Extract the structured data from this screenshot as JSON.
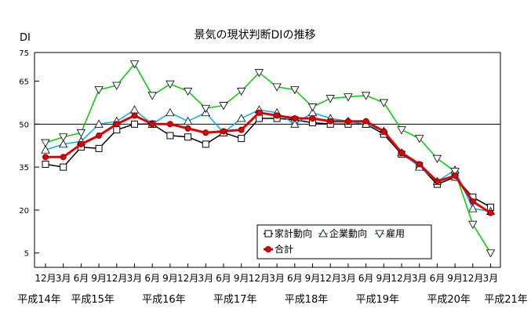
{
  "chart_data": {
    "type": "line",
    "title": "景気の現状判断DIの推移",
    "ylabel": "DI",
    "ylim": [
      0,
      75
    ],
    "yticks": [
      5,
      20,
      35,
      50,
      65,
      75
    ],
    "reference_line": 50,
    "grid": false,
    "legend_position": "bottom-right",
    "x_month_labels": [
      "12月",
      "3月",
      "6月",
      "9月",
      "12月",
      "3月",
      "6月",
      "9月",
      "12月",
      "3月",
      "6月",
      "9月",
      "12月",
      "3月",
      "6月",
      "9月",
      "12月",
      "3月",
      "6月",
      "9月",
      "12月",
      "3月",
      "6月",
      "9月",
      "12月",
      "3月"
    ],
    "year_labels": [
      {
        "label": "平成14年",
        "index": 0
      },
      {
        "label": "平成15年",
        "index": 3
      },
      {
        "label": "平成16年",
        "index": 7
      },
      {
        "label": "平成17年",
        "index": 11
      },
      {
        "label": "平成18年",
        "index": 15
      },
      {
        "label": "平成19年",
        "index": 19
      },
      {
        "label": "平成20年",
        "index": 23
      },
      {
        "label": "平成21年",
        "index": 27
      }
    ],
    "series": [
      {
        "name": "家計動向",
        "color": "#000000",
        "marker": "square",
        "values": [
          36,
          35,
          42,
          41.5,
          48,
          50,
          50,
          46,
          45.5,
          43,
          47,
          45,
          52,
          52,
          51.5,
          50.5,
          50,
          50,
          50,
          46.5,
          39.5,
          35.5,
          29,
          31.5,
          24.5,
          21
        ]
      },
      {
        "name": "企業動向",
        "color": "#00b0f0",
        "marker": "triangle-up",
        "values": [
          41,
          43,
          44,
          50,
          51,
          55,
          50,
          54,
          51,
          54,
          47,
          52,
          55,
          54,
          50,
          54,
          52,
          51,
          50,
          47.5,
          40,
          35,
          30,
          34,
          20.5,
          19.5
        ]
      },
      {
        "name": "雇用",
        "color": "#00cc00",
        "marker": "triangle-down",
        "values": [
          43.5,
          45.5,
          47,
          62,
          63.5,
          71,
          60,
          64,
          61.5,
          55.5,
          56.5,
          61.5,
          68,
          63,
          62,
          56,
          59,
          59.5,
          60,
          57.5,
          48,
          45,
          38,
          33.5,
          15,
          5
        ]
      },
      {
        "name": "合計",
        "color": "#e00000",
        "marker": "circle",
        "values": [
          38.5,
          38.5,
          43,
          46,
          50,
          53,
          50,
          50,
          48.5,
          47,
          47.5,
          48,
          54,
          53,
          52,
          52,
          51,
          51,
          51,
          47.5,
          40,
          36,
          30,
          32,
          23,
          19
        ]
      }
    ]
  }
}
